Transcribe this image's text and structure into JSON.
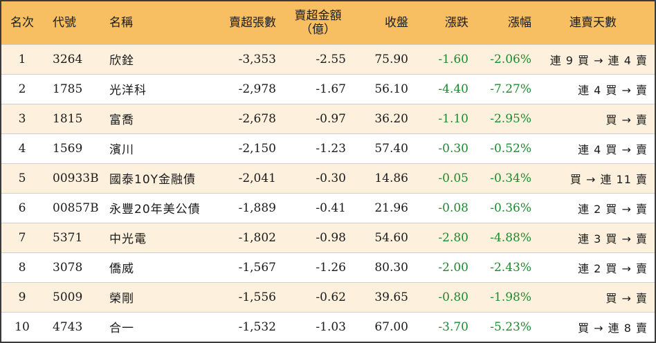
{
  "header": {
    "rank": "名次",
    "code": "代號",
    "name": "名稱",
    "sell_volume": "賣超張數",
    "sell_amount_line1": "賣超金額",
    "sell_amount_line2": "（億）",
    "close": "收盤",
    "change": "漲跌",
    "change_pct": "漲幅",
    "consecutive_days": "連賣天數"
  },
  "colors": {
    "header_bg": "#f7bf61",
    "odd_row_bg": "#fdf1de",
    "negative_change": "#1c8a2e"
  },
  "rows": [
    {
      "rank": "1",
      "code": "3264",
      "name": "欣銓",
      "sell_volume": "-3,353",
      "sell_amount": "-2.55",
      "close": "75.90",
      "change": "-1.60",
      "change_pct": "-2.06%",
      "days": "連 9 買 → 連 4 賣"
    },
    {
      "rank": "2",
      "code": "1785",
      "name": "光洋科",
      "sell_volume": "-2,978",
      "sell_amount": "-1.67",
      "close": "56.10",
      "change": "-4.40",
      "change_pct": "-7.27%",
      "days": "連 4 買 → 賣"
    },
    {
      "rank": "3",
      "code": "1815",
      "name": "富喬",
      "sell_volume": "-2,678",
      "sell_amount": "-0.97",
      "close": "36.20",
      "change": "-1.10",
      "change_pct": "-2.95%",
      "days": "買 → 賣"
    },
    {
      "rank": "4",
      "code": "1569",
      "name": "濱川",
      "sell_volume": "-2,150",
      "sell_amount": "-1.23",
      "close": "57.40",
      "change": "-0.30",
      "change_pct": "-0.52%",
      "days": "連 4 買 → 賣"
    },
    {
      "rank": "5",
      "code": "00933B",
      "name": "國泰10Y金融債",
      "sell_volume": "-2,041",
      "sell_amount": "-0.30",
      "close": "14.86",
      "change": "-0.05",
      "change_pct": "-0.34%",
      "days": "買 → 連 11 賣"
    },
    {
      "rank": "6",
      "code": "00857B",
      "name": "永豐20年美公債",
      "sell_volume": "-1,889",
      "sell_amount": "-0.41",
      "close": "21.96",
      "change": "-0.08",
      "change_pct": "-0.36%",
      "days": "連 2 買 → 賣"
    },
    {
      "rank": "7",
      "code": "5371",
      "name": "中光電",
      "sell_volume": "-1,802",
      "sell_amount": "-0.98",
      "close": "54.60",
      "change": "-2.80",
      "change_pct": "-4.88%",
      "days": "連 3 買 → 賣"
    },
    {
      "rank": "8",
      "code": "3078",
      "name": "僑威",
      "sell_volume": "-1,567",
      "sell_amount": "-1.26",
      "close": "80.30",
      "change": "-2.00",
      "change_pct": "-2.43%",
      "days": "連 2 買 → 賣"
    },
    {
      "rank": "9",
      "code": "5009",
      "name": "榮剛",
      "sell_volume": "-1,556",
      "sell_amount": "-0.62",
      "close": "39.65",
      "change": "-0.80",
      "change_pct": "-1.98%",
      "days": "買 → 賣"
    },
    {
      "rank": "10",
      "code": "4743",
      "name": "合一",
      "sell_volume": "-1,532",
      "sell_amount": "-1.03",
      "close": "67.00",
      "change": "-3.70",
      "change_pct": "-5.23%",
      "days": "買 → 連 8 賣"
    }
  ]
}
